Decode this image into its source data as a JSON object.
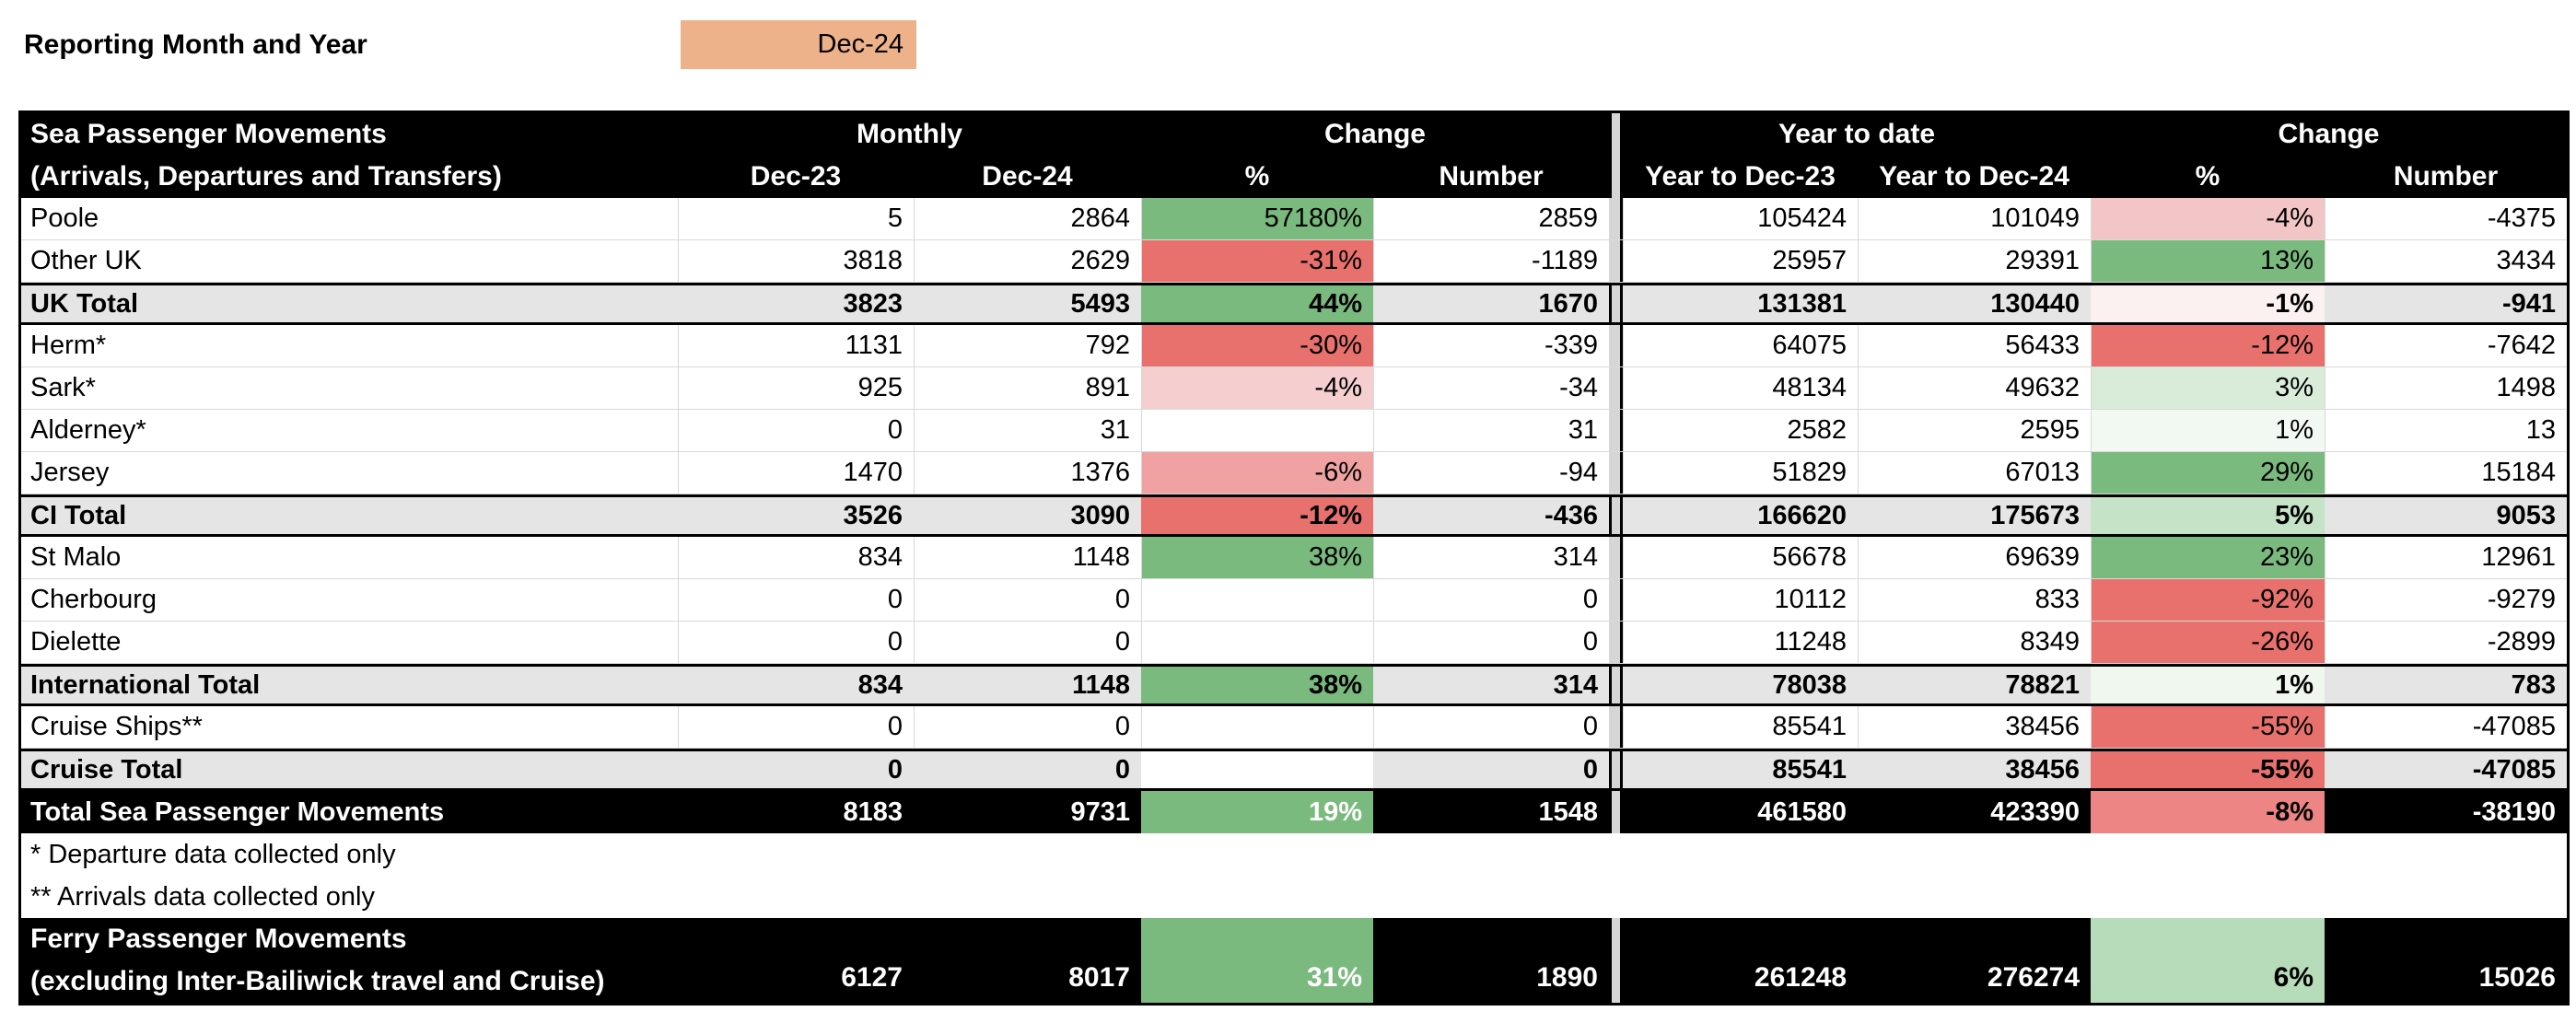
{
  "page": {
    "reporting_label": "Reporting Month and Year",
    "reporting_value": "Dec-24",
    "reporting_value_bg": "#EDB28A"
  },
  "colors": {
    "strong_green": "#7ABA7E",
    "strong_red": "#E8716E",
    "subtotal_row_bg": "#E5E5E5",
    "grand_row_bg": "#000000",
    "separator_bg": "#D6D6D6",
    "gridline": "#D9D9D9"
  },
  "table": {
    "header": {
      "title_line1": "Sea Passenger Movements",
      "title_line2": "(Arrivals, Departures and Transfers)",
      "monthly_group": "Monthly",
      "change_group": "Change",
      "ytd_group": "Year to date",
      "col_m_dec23": "Dec-23",
      "col_m_dec24": "Dec-24",
      "col_pct": "%",
      "col_number": "Number",
      "col_y_dec23": "Year to Dec-23",
      "col_y_dec24": "Year to Dec-24"
    },
    "rows": [
      {
        "label": "Poole",
        "type": "data",
        "m_dec23": "5",
        "m_dec24": "2864",
        "m_pct": "57180%",
        "m_pct_bg": "#7ABA7E",
        "m_num": "2859",
        "y_dec23": "105424",
        "y_dec24": "101049",
        "y_pct": "-4%",
        "y_pct_bg": "#F2C6C6",
        "y_num": "-4375"
      },
      {
        "label": "Other UK",
        "type": "data",
        "m_dec23": "3818",
        "m_dec24": "2629",
        "m_pct": "-31%",
        "m_pct_bg": "#E8716E",
        "m_num": "-1189",
        "y_dec23": "25957",
        "y_dec24": "29391",
        "y_pct": "13%",
        "y_pct_bg": "#7ABA7E",
        "y_num": "3434"
      },
      {
        "label": "UK Total",
        "type": "subtotal",
        "m_dec23": "3823",
        "m_dec24": "5493",
        "m_pct": "44%",
        "m_pct_bg": "#7ABA7E",
        "m_num": "1670",
        "y_dec23": "131381",
        "y_dec24": "130440",
        "y_pct": "-1%",
        "y_pct_bg": "#FCF1F1",
        "y_num": "-941"
      },
      {
        "label": "Herm*",
        "type": "data",
        "m_dec23": "1131",
        "m_dec24": "792",
        "m_pct": "-30%",
        "m_pct_bg": "#E8716E",
        "m_num": "-339",
        "y_dec23": "64075",
        "y_dec24": "56433",
        "y_pct": "-12%",
        "y_pct_bg": "#E8716E",
        "y_num": "-7642"
      },
      {
        "label": "Sark*",
        "type": "data",
        "m_dec23": "925",
        "m_dec24": "891",
        "m_pct": "-4%",
        "m_pct_bg": "#F5CFCF",
        "m_num": "-34",
        "y_dec23": "48134",
        "y_dec24": "49632",
        "y_pct": "3%",
        "y_pct_bg": "#D9ECDA",
        "y_num": "1498"
      },
      {
        "label": "Alderney*",
        "type": "data",
        "m_dec23": "0",
        "m_dec24": "31",
        "m_pct": "",
        "m_pct_bg": "#FFFFFF",
        "m_num": "31",
        "y_dec23": "2582",
        "y_dec24": "2595",
        "y_pct": "1%",
        "y_pct_bg": "#F2F9F2",
        "y_num": "13"
      },
      {
        "label": "Jersey",
        "type": "data",
        "m_dec23": "1470",
        "m_dec24": "1376",
        "m_pct": "-6%",
        "m_pct_bg": "#EFA2A1",
        "m_num": "-94",
        "y_dec23": "51829",
        "y_dec24": "67013",
        "y_pct": "29%",
        "y_pct_bg": "#7ABA7E",
        "y_num": "15184"
      },
      {
        "label": "CI Total",
        "type": "subtotal",
        "m_dec23": "3526",
        "m_dec24": "3090",
        "m_pct": "-12%",
        "m_pct_bg": "#E8716E",
        "m_num": "-436",
        "y_dec23": "166620",
        "y_dec24": "175673",
        "y_pct": "5%",
        "y_pct_bg": "#C5E3C6",
        "y_num": "9053"
      },
      {
        "label": "St Malo",
        "type": "data",
        "m_dec23": "834",
        "m_dec24": "1148",
        "m_pct": "38%",
        "m_pct_bg": "#7ABA7E",
        "m_num": "314",
        "y_dec23": "56678",
        "y_dec24": "69639",
        "y_pct": "23%",
        "y_pct_bg": "#7ABA7E",
        "y_num": "12961"
      },
      {
        "label": "Cherbourg",
        "type": "data",
        "m_dec23": "0",
        "m_dec24": "0",
        "m_pct": "",
        "m_pct_bg": "#FFFFFF",
        "m_num": "0",
        "y_dec23": "10112",
        "y_dec24": "833",
        "y_pct": "-92%",
        "y_pct_bg": "#E8716E",
        "y_num": "-9279"
      },
      {
        "label": "Dielette",
        "type": "data",
        "m_dec23": "0",
        "m_dec24": "0",
        "m_pct": "",
        "m_pct_bg": "#FFFFFF",
        "m_num": "0",
        "y_dec23": "11248",
        "y_dec24": "8349",
        "y_pct": "-26%",
        "y_pct_bg": "#E8716E",
        "y_num": "-2899"
      },
      {
        "label": "International Total",
        "type": "subtotal",
        "m_dec23": "834",
        "m_dec24": "1148",
        "m_pct": "38%",
        "m_pct_bg": "#7ABA7E",
        "m_num": "314",
        "y_dec23": "78038",
        "y_dec24": "78821",
        "y_pct": "1%",
        "y_pct_bg": "#EFF7EF",
        "y_num": "783"
      },
      {
        "label": "Cruise Ships**",
        "type": "data",
        "m_dec23": "0",
        "m_dec24": "0",
        "m_pct": "",
        "m_pct_bg": "#FFFFFF",
        "m_num": "0",
        "y_dec23": "85541",
        "y_dec24": "38456",
        "y_pct": "-55%",
        "y_pct_bg": "#E8716E",
        "y_num": "-47085"
      },
      {
        "label": "Cruise Total",
        "type": "subtotal",
        "m_dec23": "0",
        "m_dec24": "0",
        "m_pct": "",
        "m_pct_bg": "#FFFFFF",
        "m_num": "0",
        "y_dec23": "85541",
        "y_dec24": "38456",
        "y_pct": "-55%",
        "y_pct_bg": "#E8716E",
        "y_num": "-47085"
      },
      {
        "label": "Total Sea Passenger Movements",
        "type": "grand",
        "m_dec23": "8183",
        "m_dec24": "9731",
        "m_pct": "19%",
        "m_pct_bg": "#7ABA7E",
        "m_pct_fg": "#FFFFFF",
        "m_num": "1548",
        "y_dec23": "461580",
        "y_dec24": "423390",
        "y_pct": "-8%",
        "y_pct_bg": "#EC8583",
        "y_pct_fg": "#000000",
        "y_num": "-38190"
      }
    ],
    "footnotes": [
      "* Departure data collected only",
      "** Arrivals data collected only"
    ],
    "ferry": {
      "label_line1": "Ferry Passenger Movements",
      "label_line2": "(excluding Inter-Bailiwick travel and Cruise)",
      "m_dec23": "6127",
      "m_dec24": "8017",
      "m_pct": "31%",
      "m_pct_bg": "#7ABA7E",
      "m_pct_fg": "#FFFFFF",
      "m_num": "1890",
      "y_dec23": "261248",
      "y_dec24": "276274",
      "y_pct": "6%",
      "y_pct_bg": "#B7DCB9",
      "y_pct_fg": "#000000",
      "y_num": "15026"
    }
  }
}
